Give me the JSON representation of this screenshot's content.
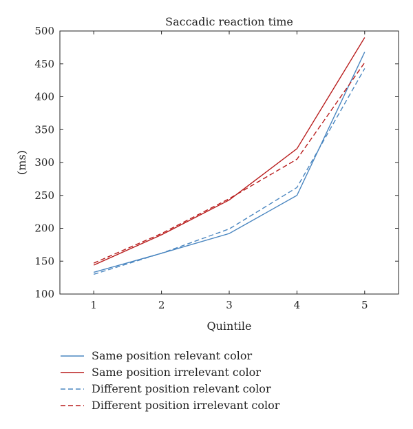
{
  "chart_data": {
    "type": "line",
    "title": "Saccadic reaction time",
    "xlabel": "Quintile",
    "ylabel": "(ms)",
    "x": [
      1,
      2,
      3,
      4,
      5
    ],
    "xlim": [
      0.5,
      5.5
    ],
    "ylim": [
      100,
      500
    ],
    "yticks": [
      100,
      150,
      200,
      250,
      300,
      350,
      400,
      450,
      500
    ],
    "xticks": [
      1,
      2,
      3,
      4,
      5
    ],
    "grid": false,
    "legend_position": "below",
    "series": [
      {
        "name": "Same position relevant color",
        "values": [
          133,
          162,
          192,
          250,
          468
        ],
        "color": "#4a86c0",
        "dash": "solid"
      },
      {
        "name": "Same position irrelevant color",
        "values": [
          144,
          190,
          243,
          321,
          490
        ],
        "color": "#b81c1c",
        "dash": "solid"
      },
      {
        "name": "Different position relevant color",
        "values": [
          130,
          162,
          199,
          262,
          443
        ],
        "color": "#4a86c0",
        "dash": "dashed"
      },
      {
        "name": "Different position irrelevant color",
        "values": [
          147,
          192,
          245,
          305,
          452
        ],
        "color": "#b81c1c",
        "dash": "dashed"
      }
    ]
  }
}
